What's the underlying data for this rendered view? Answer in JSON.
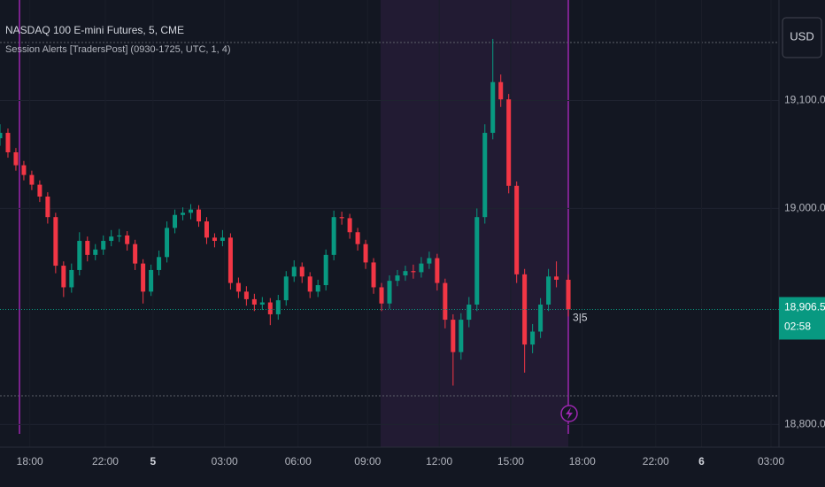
{
  "chart_data": {
    "type": "candlestick",
    "title": "NASDAQ 100 E-mini Futures, 5, CME",
    "indicator": "Session Alerts [TradersPost] (0930-1725, UTC, 1, 4)",
    "currency": "USD",
    "countdown": "02:58",
    "annotation": "3|5",
    "last_price": {
      "value": 18906.5,
      "label": "18,906.50"
    },
    "up_color": "#089981",
    "down_color": "#f23645",
    "x": [
      0,
      4,
      8,
      12,
      16,
      20,
      24,
      28,
      32,
      36,
      40,
      44,
      48,
      52,
      56,
      60,
      64,
      68,
      72,
      76,
      80,
      84,
      88,
      92,
      96,
      100,
      104,
      108,
      112,
      116,
      120,
      124,
      128,
      132,
      136,
      140,
      144,
      148,
      152,
      156,
      160,
      164,
      168,
      172,
      176,
      180,
      184,
      188,
      192,
      196,
      200,
      204,
      208,
      212,
      216,
      220,
      224,
      228,
      232,
      236,
      240,
      244,
      248,
      252,
      256,
      260,
      264,
      268,
      272,
      276,
      280,
      286
    ],
    "open": [
      19065,
      19070,
      19052,
      19040,
      19031,
      19022,
      19011,
      18992,
      18947,
      18927,
      18943,
      18970,
      18957,
      18962,
      18970,
      18974,
      18975,
      18967,
      18949,
      18923,
      18943,
      18955,
      18982,
      18994,
      18996,
      18999,
      18988,
      18973,
      18970,
      18973,
      18931,
      18923,
      18916,
      18911,
      18913,
      18902,
      18915,
      18937,
      18946,
      18937,
      18923,
      18929,
      18957,
      18992,
      18991,
      18978,
      18967,
      18950,
      18927,
      18912,
      18933,
      18938,
      18942,
      18941,
      18949,
      18954,
      18931,
      18897,
      18867,
      18897,
      18911,
      18992,
      19070,
      19117,
      19101,
      19021,
      18939,
      18874,
      18886,
      18911,
      18937,
      18934
    ],
    "high": [
      19078,
      19074,
      19056,
      19044,
      19035,
      19026,
      19015,
      18996,
      18951,
      18949,
      18978,
      18974,
      18967,
      18975,
      18980,
      18981,
      18979,
      18971,
      18953,
      18948,
      18961,
      18988,
      18999,
      19001,
      19004,
      19003,
      18992,
      18977,
      18980,
      18977,
      18936,
      18928,
      18921,
      18918,
      18917,
      18920,
      18942,
      18952,
      18950,
      18941,
      18934,
      18962,
      18998,
      18997,
      18995,
      18982,
      18971,
      18954,
      18931,
      18938,
      18943,
      18947,
      18948,
      18955,
      18960,
      18958,
      18935,
      18902,
      18903,
      18918,
      19000,
      19078,
      19157,
      19124,
      19106,
      19025,
      18944,
      18893,
      18917,
      18944,
      18951,
      18939
    ],
    "low": [
      19058,
      19047,
      19035,
      19026,
      19017,
      19006,
      18986,
      18940,
      18918,
      18922,
      18938,
      18951,
      18952,
      18957,
      18965,
      18969,
      18961,
      18943,
      18912,
      18919,
      18938,
      18950,
      18977,
      18989,
      18990,
      18983,
      18967,
      18964,
      18965,
      18925,
      18917,
      18910,
      18905,
      18906,
      18892,
      18897,
      18910,
      18932,
      18931,
      18917,
      18918,
      18924,
      18952,
      18985,
      18972,
      18961,
      18944,
      18921,
      18905,
      18907,
      18928,
      18933,
      18935,
      18936,
      18944,
      18924,
      18889,
      18836,
      18860,
      18890,
      18905,
      18986,
      19064,
      19094,
      19014,
      18931,
      18848,
      18866,
      18880,
      18905,
      18927,
      18900
    ],
    "close": [
      19070,
      19052,
      19040,
      19031,
      19022,
      19011,
      18992,
      18947,
      18927,
      18943,
      18970,
      18957,
      18962,
      18970,
      18974,
      18975,
      18967,
      18949,
      18923,
      18943,
      18955,
      18982,
      18994,
      18996,
      18999,
      18988,
      18973,
      18970,
      18973,
      18931,
      18923,
      18916,
      18911,
      18913,
      18902,
      18915,
      18937,
      18946,
      18937,
      18923,
      18929,
      18957,
      18992,
      18991,
      18978,
      18967,
      18950,
      18927,
      18912,
      18933,
      18938,
      18942,
      18941,
      18949,
      18954,
      18931,
      18897,
      18867,
      18897,
      18911,
      18992,
      19070,
      19117,
      19101,
      19021,
      18939,
      18874,
      18886,
      18911,
      18937,
      18934,
      18906.5
    ],
    "xlim": [
      0,
      392
    ],
    "xticks": [
      {
        "value": 15,
        "label": "18:00"
      },
      {
        "value": 53,
        "label": "22:00"
      },
      {
        "value": 77,
        "label": "5"
      },
      {
        "value": 113,
        "label": "03:00"
      },
      {
        "value": 150,
        "label": "06:00"
      },
      {
        "value": 185,
        "label": "09:00"
      },
      {
        "value": 221,
        "label": "12:00"
      },
      {
        "value": 257,
        "label": "15:00"
      },
      {
        "value": 293,
        "label": "18:00"
      },
      {
        "value": 330,
        "label": "22:00"
      },
      {
        "value": 353,
        "label": "6"
      },
      {
        "value": 388,
        "label": "03:00"
      }
    ],
    "ylim": [
      18779,
      19193
    ],
    "yticks": [
      {
        "value": 18800,
        "label": "18,800.00"
      },
      {
        "value": 19000,
        "label": "19,000.00"
      },
      {
        "value": 19100,
        "label": "19,100.00"
      }
    ],
    "grid": true
  }
}
